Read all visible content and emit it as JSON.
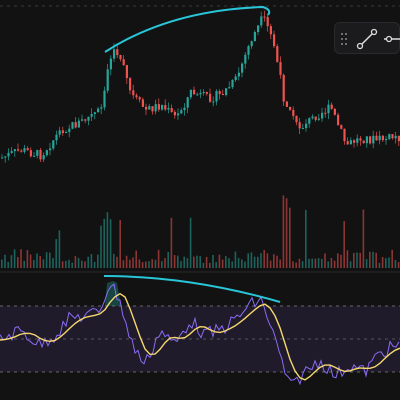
{
  "toolbar": {
    "tools": [
      {
        "icon": "trend-line-icon"
      },
      {
        "icon": "horizontal-ray-icon"
      }
    ]
  },
  "colors": {
    "background": "#121212",
    "up": "#26a69a",
    "down": "#ef5350",
    "annotation": "#29c5d8",
    "rsi": "#8b6cf5",
    "rsi_ma": "#f5d76e",
    "rsi_band": "#3a2f5c",
    "grid": "#3a3a3a"
  },
  "annotations": [
    {
      "type": "arc-on-price-highs"
    },
    {
      "type": "arc-on-rsi-highs"
    }
  ]
}
